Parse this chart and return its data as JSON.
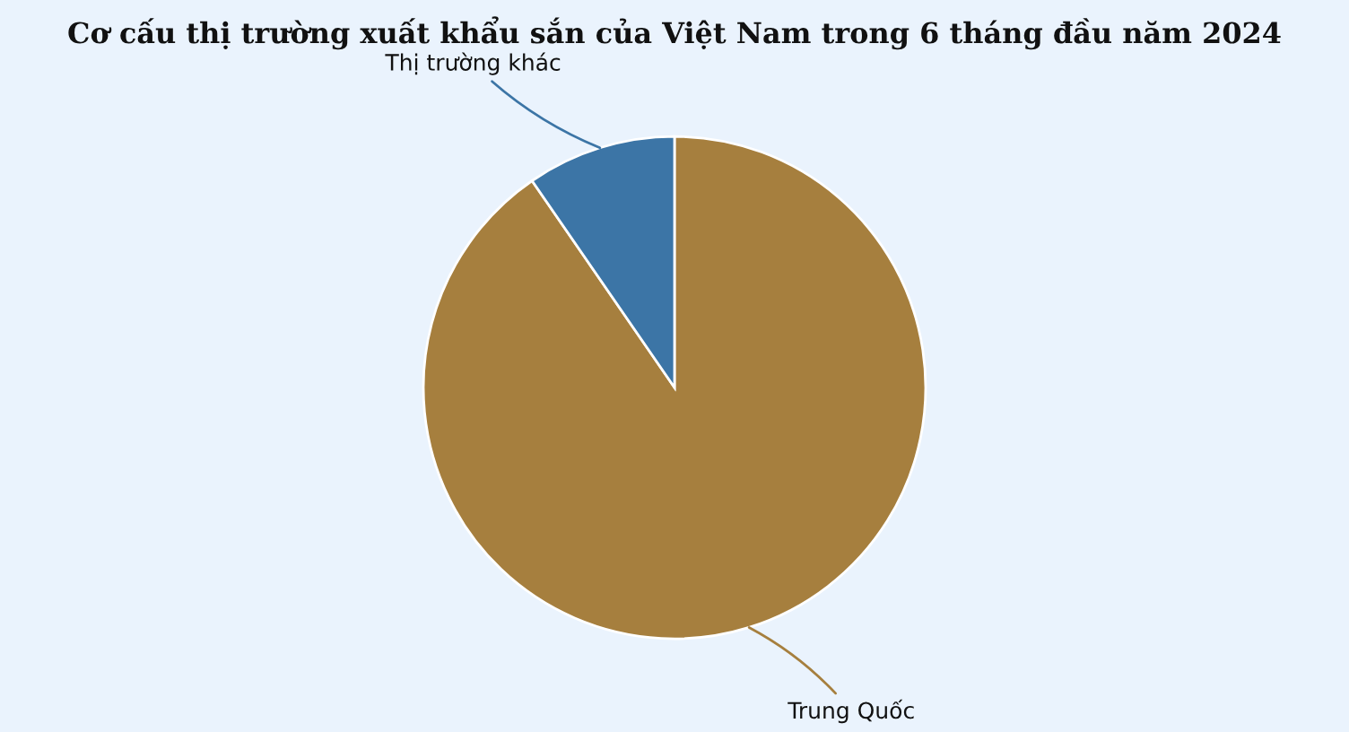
{
  "chart_data": {
    "type": "pie",
    "title": "Cơ cấu thị trường xuất khẩu sắn của Việt Nam trong 6 tháng đầu năm 2024",
    "categories": [
      "Trung Quốc",
      "Thị trường khác"
    ],
    "values": [
      90.4,
      9.6
    ],
    "colors": [
      "#a67f3e",
      "#3c75a6"
    ]
  }
}
